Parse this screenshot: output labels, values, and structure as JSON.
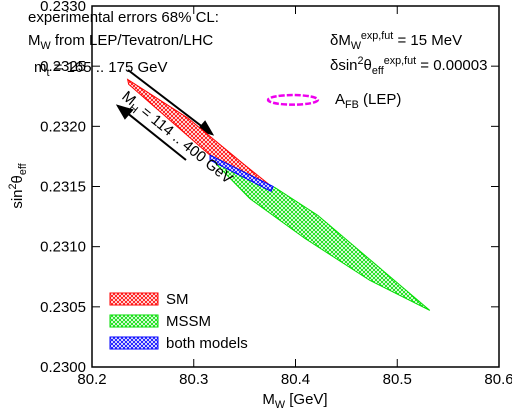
{
  "chart_data": {
    "type": "region",
    "x_label": [
      "M",
      {
        "sub": "W"
      },
      " [GeV]"
    ],
    "y_label": [
      "sin",
      {
        "sup": "2"
      },
      "θ",
      {
        "sub": "eff"
      }
    ],
    "xlim": [
      80.2,
      80.6
    ],
    "xticks": [
      80.2,
      80.3,
      80.4,
      80.5,
      80.6
    ],
    "ylim": [
      0.23,
      0.233
    ],
    "yticks": [
      {
        "value": 0.23,
        "label": "0.2300"
      },
      {
        "value": 0.2305,
        "label": "0.2305"
      },
      {
        "value": 0.231,
        "label": "0.2310"
      },
      {
        "value": 0.2315,
        "label": "0.2315"
      },
      {
        "value": 0.232,
        "label": "0.2320"
      },
      {
        "value": 0.2325,
        "label": "0.2325"
      },
      {
        "value": 0.233,
        "label": "0.2330"
      }
    ],
    "annotations": [
      [
        "experimental errors 68% CL:"
      ],
      [
        "M",
        {
          "sub": "W"
        },
        " from LEP/Tevatron/LHC"
      ],
      [
        "δM",
        {
          "sub": "W"
        },
        {
          "sup": "exp,fut"
        },
        " = 15 MeV"
      ],
      [
        "δsin",
        {
          "sup": "2"
        },
        "θ",
        {
          "sub": "eff"
        },
        {
          "sup": "exp,fut"
        },
        " = 0.00003"
      ],
      [
        "m",
        {
          "sub": "t"
        },
        " = 165 .. 175 GeV"
      ],
      [
        "M",
        {
          "sub": "H"
        },
        " = 114 .. 400 GeV"
      ]
    ],
    "series": [
      {
        "name": "SM",
        "color": "#ff0000",
        "x": [
          80.235,
          80.294,
          80.347,
          80.375,
          80.316,
          80.236
        ],
        "y": [
          0.23239,
          0.23207,
          0.2317,
          0.23151,
          0.23176,
          0.23235
        ]
      },
      {
        "name": "MSSM",
        "color": "#00dd00",
        "x": [
          80.316,
          80.38,
          80.422,
          80.532,
          80.473,
          80.409,
          80.355,
          80.316
        ],
        "y": [
          0.23176,
          0.23149,
          0.23126,
          0.23047,
          0.23072,
          0.23107,
          0.2314,
          0.23174
        ]
      },
      {
        "name": "both models",
        "color": "#0000ff",
        "x": [
          80.316,
          80.378,
          80.376,
          80.316
        ],
        "y": [
          0.23176,
          0.2315,
          0.23146,
          0.23172
        ]
      }
    ],
    "ellipse": {
      "label": [
        "A",
        {
          "sub": "FB"
        },
        " (LEP)"
      ],
      "color": "#ee00ee",
      "cx": 80.3975,
      "cy": 0.23222,
      "rx": 0.0245,
      "ry": 4e-05
    },
    "legend": "lower left"
  }
}
